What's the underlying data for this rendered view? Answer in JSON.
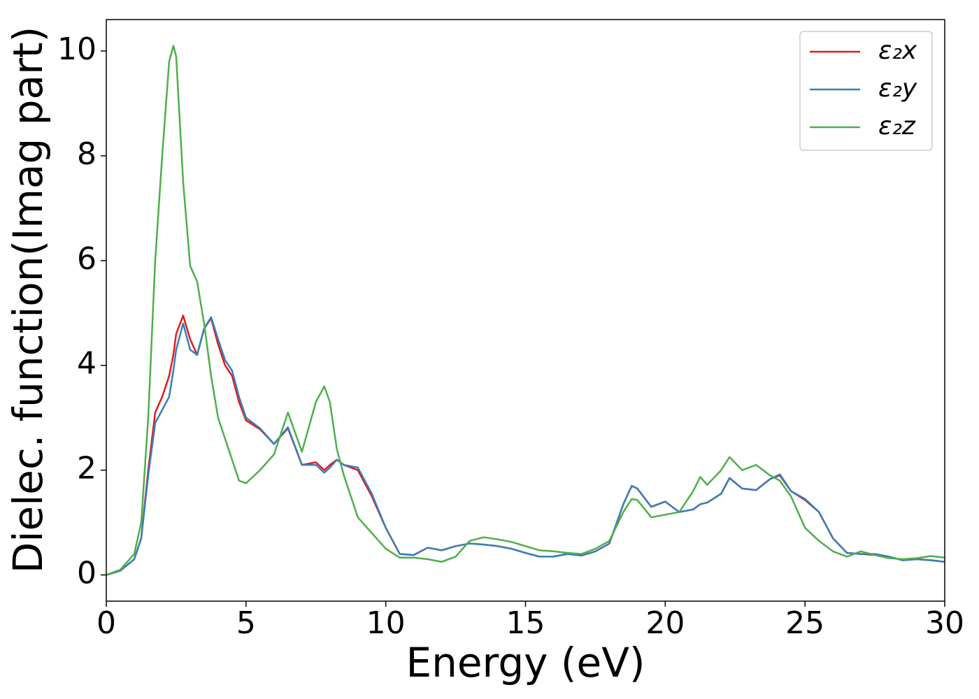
{
  "chart_data": {
    "type": "line",
    "xlabel": "Energy (eV)",
    "ylabel": "Dielec. function(Imag part)",
    "x": [
      0,
      0.5,
      1,
      1.25,
      1.5,
      1.75,
      2,
      2.25,
      2.4,
      2.5,
      2.75,
      3,
      3.25,
      3.5,
      3.75,
      4,
      4.25,
      4.5,
      4.75,
      5,
      5.5,
      6,
      6.5,
      7,
      7.5,
      7.8,
      8,
      8.25,
      8.5,
      9,
      9.5,
      10,
      10.5,
      11,
      11.5,
      12,
      12.5,
      13,
      13.5,
      14,
      14.5,
      15,
      15.5,
      16,
      16.5,
      17,
      17.5,
      18,
      18.5,
      18.8,
      19,
      19.5,
      20,
      20.5,
      21,
      21.25,
      21.5,
      22,
      22.3,
      22.75,
      23.25,
      23.75,
      24.1,
      24.5,
      25,
      25.5,
      26,
      26.5,
      27,
      27.5,
      28,
      28.5,
      29,
      29.5,
      30
    ],
    "series": [
      {
        "name": "ε₂x",
        "color": "#e41a1c",
        "values": [
          0,
          0.08,
          0.3,
          0.7,
          2.0,
          3.1,
          3.4,
          3.8,
          4.2,
          4.6,
          4.95,
          4.5,
          4.2,
          4.7,
          4.9,
          4.4,
          4.0,
          3.8,
          3.3,
          2.95,
          2.78,
          2.5,
          2.8,
          2.1,
          2.15,
          2.0,
          2.1,
          2.2,
          2.1,
          2.0,
          1.5,
          0.9,
          0.4,
          0.38,
          0.52,
          0.47,
          0.55,
          0.6,
          0.58,
          0.55,
          0.5,
          0.42,
          0.35,
          0.35,
          0.4,
          0.37,
          0.45,
          0.6,
          1.35,
          1.7,
          1.65,
          1.3,
          1.4,
          1.2,
          1.25,
          1.35,
          1.38,
          1.55,
          1.85,
          1.65,
          1.62,
          1.83,
          1.9,
          1.6,
          1.43,
          1.2,
          0.7,
          0.42,
          0.4,
          0.38,
          0.35,
          0.28,
          0.3,
          0.28,
          0.25
        ]
      },
      {
        "name": "ε₂y",
        "color": "#377eb8",
        "values": [
          0,
          0.08,
          0.3,
          0.7,
          1.9,
          2.9,
          3.15,
          3.4,
          3.9,
          4.3,
          4.8,
          4.3,
          4.2,
          4.7,
          4.92,
          4.5,
          4.1,
          3.9,
          3.4,
          3.0,
          2.8,
          2.5,
          2.82,
          2.1,
          2.1,
          1.95,
          2.05,
          2.2,
          2.1,
          2.05,
          1.55,
          0.9,
          0.4,
          0.38,
          0.52,
          0.47,
          0.55,
          0.6,
          0.58,
          0.55,
          0.5,
          0.42,
          0.35,
          0.35,
          0.4,
          0.37,
          0.45,
          0.6,
          1.35,
          1.7,
          1.65,
          1.3,
          1.4,
          1.2,
          1.25,
          1.35,
          1.38,
          1.55,
          1.85,
          1.65,
          1.62,
          1.83,
          1.92,
          1.6,
          1.45,
          1.2,
          0.7,
          0.42,
          0.4,
          0.4,
          0.35,
          0.28,
          0.3,
          0.28,
          0.25
        ]
      },
      {
        "name": "ε₂z",
        "color": "#4daf4a",
        "values": [
          0,
          0.1,
          0.4,
          1.0,
          3.0,
          6.0,
          8.0,
          9.8,
          10.1,
          9.9,
          7.5,
          5.9,
          5.6,
          4.8,
          3.8,
          3.0,
          2.6,
          2.2,
          1.8,
          1.75,
          2.0,
          2.3,
          3.1,
          2.35,
          3.3,
          3.6,
          3.3,
          2.4,
          1.9,
          1.1,
          0.8,
          0.5,
          0.33,
          0.33,
          0.3,
          0.25,
          0.35,
          0.65,
          0.72,
          0.68,
          0.63,
          0.55,
          0.47,
          0.45,
          0.42,
          0.4,
          0.5,
          0.65,
          1.2,
          1.45,
          1.43,
          1.1,
          1.15,
          1.2,
          1.6,
          1.87,
          1.72,
          2.0,
          2.25,
          2.0,
          2.1,
          1.9,
          1.8,
          1.5,
          0.9,
          0.65,
          0.45,
          0.35,
          0.45,
          0.38,
          0.32,
          0.3,
          0.32,
          0.36,
          0.33
        ]
      }
    ],
    "xlim": [
      0,
      30
    ],
    "xticks": [
      0,
      5,
      10,
      15,
      20,
      25,
      30
    ],
    "ylim": [
      -0.5,
      10.6
    ],
    "yticks": [
      0,
      2,
      4,
      6,
      8,
      10
    ],
    "grid": false,
    "legend": "upper right"
  }
}
